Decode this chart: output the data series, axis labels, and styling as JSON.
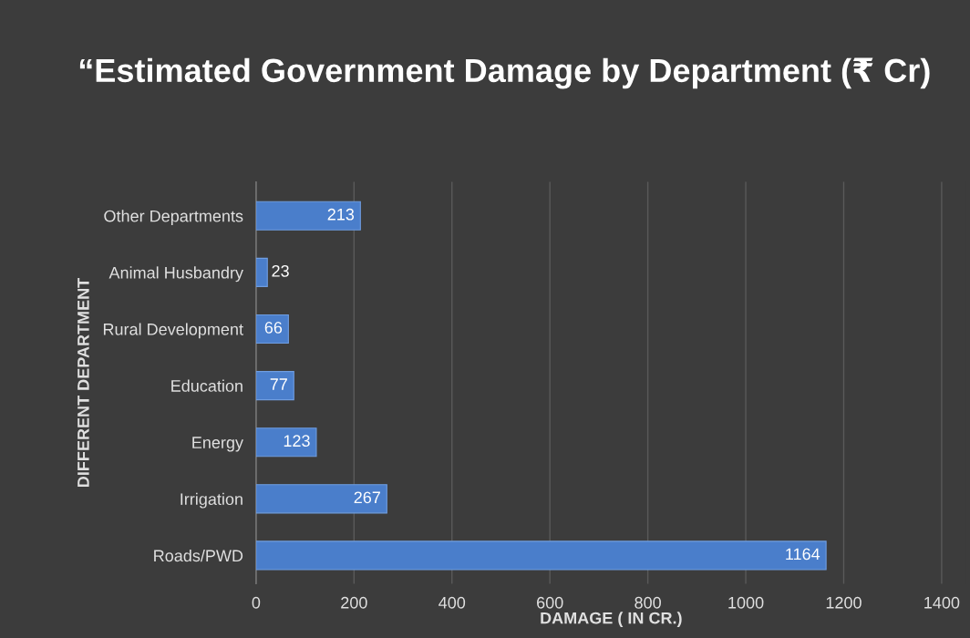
{
  "chart_data": {
    "type": "bar",
    "orientation": "horizontal",
    "title": "“Estimated Government Damage by Department (₹ Cr)",
    "xlabel": "DAMAGE ( IN CR.)",
    "ylabel": "DIFFERENT DEPARTMENT",
    "categories": [
      "Other Departments",
      "Animal Husbandry",
      "Rural Development",
      "Education",
      "Energy",
      "Irrigation",
      "Roads/PWD"
    ],
    "values": [
      213,
      23,
      66,
      77,
      123,
      267,
      1164
    ],
    "color": "#4a7ecb",
    "xlim": [
      0,
      1450
    ],
    "xticks": [
      0,
      200,
      400,
      600,
      800,
      1000,
      1200,
      1400
    ],
    "grid": "x",
    "data_labels": true
  }
}
